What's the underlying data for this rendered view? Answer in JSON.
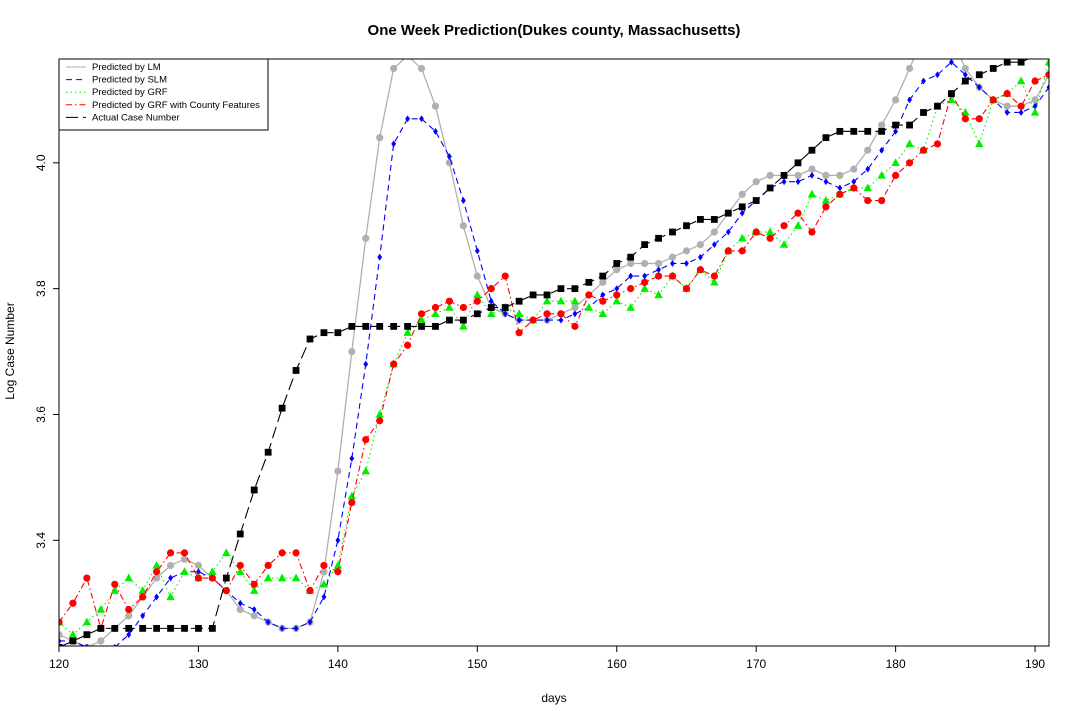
{
  "chart_data": {
    "type": "line",
    "title": "One Week Prediction(Dukes county, Massachusetts)",
    "xlabel": "days",
    "ylabel": "Log Case Number",
    "xlim": [
      120,
      191
    ],
    "ylim": [
      3.232,
      4.165
    ],
    "x_ticks": [
      120,
      130,
      140,
      150,
      160,
      170,
      180,
      190
    ],
    "y_ticks": [
      3.4,
      3.6,
      3.8,
      4.0
    ],
    "y_tick_labels": [
      "3.4",
      "3.6",
      "3.8",
      "4.0"
    ],
    "grid": false,
    "legend_position": "top-left",
    "x": [
      120,
      121,
      122,
      123,
      124,
      125,
      126,
      127,
      128,
      129,
      130,
      131,
      132,
      133,
      134,
      135,
      136,
      137,
      138,
      139,
      140,
      141,
      142,
      143,
      144,
      145,
      146,
      147,
      148,
      149,
      150,
      151,
      152,
      153,
      154,
      155,
      156,
      157,
      158,
      159,
      160,
      161,
      162,
      163,
      164,
      165,
      166,
      167,
      168,
      169,
      170,
      171,
      172,
      173,
      174,
      175,
      176,
      177,
      178,
      179,
      180,
      181,
      182,
      183,
      184,
      185,
      186,
      187,
      188,
      189,
      190,
      191
    ],
    "series": [
      {
        "name": "Predicted by LM",
        "color": "#b0b0b0",
        "line": "solid",
        "marker": "circle",
        "values": [
          3.25,
          3.24,
          3.23,
          3.24,
          3.26,
          3.28,
          3.31,
          3.34,
          3.36,
          3.37,
          3.36,
          3.34,
          3.32,
          3.29,
          3.28,
          3.27,
          3.26,
          3.26,
          3.27,
          3.35,
          3.51,
          3.7,
          3.88,
          4.04,
          4.15,
          4.17,
          4.15,
          4.09,
          4.0,
          3.9,
          3.82,
          3.77,
          3.76,
          3.75,
          3.75,
          3.75,
          3.76,
          3.77,
          3.79,
          3.81,
          3.83,
          3.84,
          3.84,
          3.84,
          3.85,
          3.86,
          3.87,
          3.89,
          3.92,
          3.95,
          3.97,
          3.98,
          3.98,
          3.98,
          3.99,
          3.98,
          3.98,
          3.99,
          4.02,
          4.06,
          4.1,
          4.15,
          4.2,
          4.23,
          4.2,
          4.15,
          4.12,
          4.1,
          4.09,
          4.09,
          4.1,
          4.14
        ]
      },
      {
        "name": "Predicted by SLM",
        "color": "#0000ff",
        "line": "dashed",
        "marker": "diamond",
        "values": [
          3.24,
          3.24,
          3.23,
          3.22,
          3.23,
          3.25,
          3.28,
          3.31,
          3.34,
          3.35,
          3.35,
          3.34,
          3.32,
          3.3,
          3.29,
          3.27,
          3.26,
          3.26,
          3.27,
          3.31,
          3.4,
          3.53,
          3.68,
          3.85,
          4.03,
          4.07,
          4.07,
          4.05,
          4.01,
          3.94,
          3.86,
          3.78,
          3.76,
          3.75,
          3.75,
          3.75,
          3.75,
          3.76,
          3.77,
          3.79,
          3.8,
          3.82,
          3.82,
          3.83,
          3.84,
          3.84,
          3.85,
          3.87,
          3.89,
          3.92,
          3.94,
          3.96,
          3.97,
          3.97,
          3.98,
          3.97,
          3.96,
          3.97,
          3.99,
          4.02,
          4.05,
          4.1,
          4.13,
          4.14,
          4.16,
          4.14,
          4.12,
          4.1,
          4.08,
          4.08,
          4.09,
          4.12
        ]
      },
      {
        "name": "Predicted by GRF",
        "color": "#00ee00",
        "line": "dotted",
        "marker": "triangle",
        "values": [
          3.27,
          3.25,
          3.27,
          3.29,
          3.32,
          3.34,
          3.32,
          3.36,
          3.31,
          3.35,
          3.34,
          3.35,
          3.38,
          3.35,
          3.32,
          3.34,
          3.34,
          3.34,
          3.32,
          3.33,
          3.36,
          3.47,
          3.51,
          3.6,
          3.68,
          3.73,
          3.75,
          3.76,
          3.77,
          3.74,
          3.79,
          3.76,
          3.77,
          3.76,
          3.75,
          3.78,
          3.78,
          3.78,
          3.77,
          3.76,
          3.78,
          3.77,
          3.8,
          3.79,
          3.82,
          3.8,
          3.83,
          3.81,
          3.86,
          3.88,
          3.89,
          3.89,
          3.87,
          3.9,
          3.95,
          3.94,
          3.95,
          3.96,
          3.96,
          3.98,
          4.0,
          4.03,
          4.02,
          4.09,
          4.1,
          4.08,
          4.03,
          4.1,
          4.11,
          4.13,
          4.08,
          4.16
        ]
      },
      {
        "name": "Predicted by GRF with County Features",
        "color": "#ff0000",
        "line": "dotdash",
        "marker": "circle",
        "values": [
          3.27,
          3.3,
          3.34,
          3.26,
          3.33,
          3.29,
          3.31,
          3.35,
          3.38,
          3.38,
          3.34,
          3.34,
          3.32,
          3.36,
          3.33,
          3.36,
          3.38,
          3.38,
          3.32,
          3.36,
          3.35,
          3.46,
          3.56,
          3.59,
          3.68,
          3.71,
          3.76,
          3.77,
          3.78,
          3.77,
          3.78,
          3.8,
          3.82,
          3.73,
          3.75,
          3.76,
          3.76,
          3.74,
          3.79,
          3.78,
          3.79,
          3.8,
          3.81,
          3.82,
          3.82,
          3.8,
          3.83,
          3.82,
          3.86,
          3.86,
          3.89,
          3.88,
          3.9,
          3.92,
          3.89,
          3.93,
          3.95,
          3.96,
          3.94,
          3.94,
          3.98,
          4.0,
          4.02,
          4.03,
          4.11,
          4.07,
          4.07,
          4.1,
          4.11,
          4.09,
          4.13,
          4.14
        ]
      },
      {
        "name": "Actual Case Number",
        "color": "#000000",
        "line": "longdash",
        "marker": "square",
        "values": [
          3.23,
          3.24,
          3.25,
          3.26,
          3.26,
          3.26,
          3.26,
          3.26,
          3.26,
          3.26,
          3.26,
          3.26,
          3.34,
          3.41,
          3.48,
          3.54,
          3.61,
          3.67,
          3.72,
          3.73,
          3.73,
          3.74,
          3.74,
          3.74,
          3.74,
          3.74,
          3.74,
          3.74,
          3.75,
          3.75,
          3.76,
          3.77,
          3.77,
          3.78,
          3.79,
          3.79,
          3.8,
          3.8,
          3.81,
          3.82,
          3.84,
          3.85,
          3.87,
          3.88,
          3.89,
          3.9,
          3.91,
          3.91,
          3.92,
          3.93,
          3.94,
          3.96,
          3.98,
          4.0,
          4.02,
          4.04,
          4.05,
          4.05,
          4.05,
          4.05,
          4.06,
          4.06,
          4.08,
          4.09,
          4.11,
          4.13,
          4.14,
          4.15,
          4.16,
          4.16,
          4.17,
          4.17
        ]
      }
    ]
  }
}
